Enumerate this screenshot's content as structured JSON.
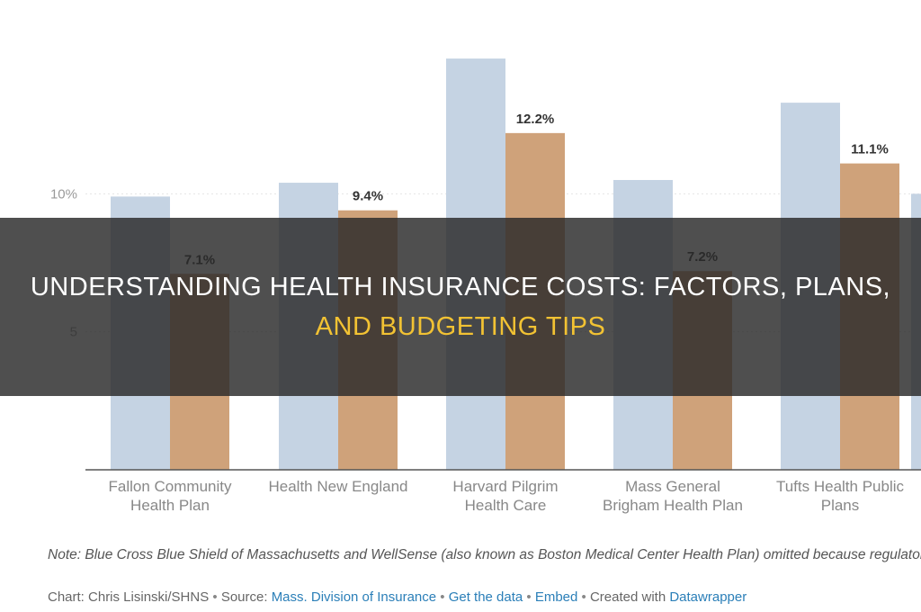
{
  "chart_data": {
    "type": "bar",
    "categories": [
      [
        "Fallon Community",
        "Health Plan"
      ],
      [
        "Health New England"
      ],
      [
        "Harvard Pilgrim",
        "Health Care"
      ],
      [
        "Mass General",
        "Brigham Health Plan"
      ],
      [
        "Tufts Health Public",
        "Plans"
      ],
      [
        ""
      ]
    ],
    "series": [
      {
        "values": [
          9.9,
          10.4,
          14.9,
          10.5,
          13.3,
          10.0
        ],
        "color": "#c5d3e3",
        "labels": [
          "",
          "",
          "",
          "",
          "",
          ""
        ]
      },
      {
        "values": [
          7.1,
          9.4,
          12.2,
          7.2,
          11.1,
          0
        ],
        "color": "#cfa27a",
        "labels": [
          "7.1%",
          "9.4%",
          "12.2%",
          "7.2%",
          "11.1%",
          ""
        ]
      }
    ],
    "y_ticks": [
      {
        "value": 5,
        "label": "5"
      },
      {
        "value": 10,
        "label": "10%"
      }
    ],
    "ylim": [
      0,
      15
    ],
    "grid": true,
    "title": "",
    "xlabel": "",
    "ylabel": ""
  },
  "note": "Note: Blue Cross Blue Shield of Massachusetts and WellSense (also known as Boston Medical Center Health Plan) omitted because regulators rejected their proposed rate increases. Both carriers can appeal the decision.",
  "credit": {
    "chart": "Chart: Chris Lisinski/SHNS",
    "source_label": "Source: ",
    "source_link": "Mass. Division of Insurance",
    "get_data": "Get the data",
    "embed": "Embed",
    "created_with": "Created with ",
    "tool": "Datawrapper"
  },
  "banner": {
    "line1": "Understanding Health Insurance Costs: Factors, Plans,",
    "line2": "and Budgeting Tips"
  }
}
